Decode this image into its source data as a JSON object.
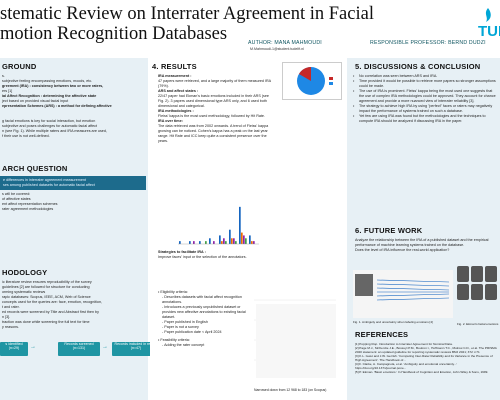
{
  "header": {
    "title_line1": "stematic Review on Interrater Agreement in Facial",
    "title_line2": "motion Recognition Databases",
    "authors": "AUTHOR: MANA MAHMOUDI",
    "email": "M.Mahmoudi-1@student.tudelft.nl",
    "professor": "RESPONSIBLE PROFESSOR: BERND DUDZI"
  },
  "logo": {
    "text": "TUD",
    "icon": "tudelft-flame-icon"
  },
  "background": {
    "heading": "GROUND",
    "lines": [
      "s.",
      "subjective feeling encompassing emotions, moods, etc.",
      "greement (IRA) : consistency between two or more raters,",
      "ers [1]",
      "ial Affect Recognition : determining the affective state",
      "ject based on provided visual facial input",
      "epresentation Schemes (ARS) : a method for defining affective",
      "",
      "",
      "g facial emotions is key for social interaction, but emotion",
      "subjective and poses challenges for automatic facial affect",
      "n (see Fig. 1). While multiple raters and IRA measures are used,",
      "f their use is not well-defined."
    ]
  },
  "research_question": {
    "heading": "ARCH QUESTION",
    "box": [
      "e differences in interrater agreement measurement",
      "ses among published datasets for automatic facial affect"
    ],
    "items": [
      "s will be covered:",
      "of affective states",
      "ent affect representation schemes",
      "rater agreement methodologies"
    ]
  },
  "methodology": {
    "heading": "HODOLOGY",
    "lines": [
      "ic literature review ensures reproducibility of the survey",
      "guidelines [2] are followed for structure for conducting",
      "orming systematic reviews",
      "rapic databases: Scopus, IEEE, ACM, Web of Science",
      "concepts used for the queries are: face, emotion, recognition,",
      "t and rater.",
      "ed records were screened by Title and Abstract first then by",
      "n [3].",
      "traction was done while screening the full text for time",
      "y reasons."
    ],
    "flow": [
      {
        "label": "s identified",
        "sub": "(n=29)"
      },
      {
        "label": "Records screened",
        "sub": "(n=131)"
      },
      {
        "label": "Records included in review",
        "sub": "(n=47)"
      }
    ],
    "eligibility_heading": "Eligibility criteria:",
    "eligibility": [
      "Describes datasets with facial affect recognition annotations.",
      "Introduces a previously unpublished dataset or provides new affective annotations to existing facial dataset.",
      "Paper published in English",
      "Paper is not a survey",
      "Paper publication date < April 2024"
    ],
    "feasibility_heading": "Feasibility criteria:",
    "feasibility": [
      "Adding the rater concept"
    ],
    "chart_caption": "Narrowed down from 12 968 to 183 (on Scopus)"
  },
  "results": {
    "heading": "4. RESULTS",
    "ira_heading": "IRA measurement :",
    "ira_text": "47 papers were retrieved, and a large majority of them measured IRA (79%).",
    "ars_heading": "ARS and affect states :",
    "ars_text": "22/47 paper had Ekman's basic emotions included in their ARS (see Fig. 2). 3 papers used dimensional type ARS only, and 6 used both dimensional and categorical.",
    "meth_heading": "IRA methodologies :",
    "meth_text": "Fleiss' kappa is the most used methodology, followed by Hit Rate.",
    "time_heading": "IRA over time:",
    "time_text": "The data retrieved was from 2002 onwards. A trend of Fleiss' kappa growing can be noticed. Cohen's kappa has a peak on the last year range. Hit Rate and ICC keep quite a consistent presence over the years.",
    "strat_heading": "Strategies to facilitate IRA :",
    "strat_text": "Improve faces' input or the selection of the annotators."
  },
  "pie_chart": {
    "legend": [
      "",
      ""
    ],
    "colors": [
      "#c62828",
      "#1e88e5"
    ]
  },
  "chart_data": {
    "type": "bar",
    "categories": [
      "",
      "",
      "",
      "",
      "",
      "",
      "",
      ""
    ],
    "series": [
      {
        "name": "",
        "values": [
          1,
          1,
          1,
          2,
          3,
          5,
          13,
          3
        ],
        "color": "#1565c0"
      },
      {
        "name": "",
        "values": [
          0,
          0,
          0,
          0,
          1,
          2,
          4,
          1
        ],
        "color": "#ef6c00"
      },
      {
        "name": "",
        "values": [
          0,
          1,
          0,
          1,
          2,
          2,
          3,
          1
        ],
        "color": "#8e24aa"
      },
      {
        "name": "",
        "values": [
          0,
          0,
          1,
          0,
          1,
          1,
          2,
          0
        ],
        "color": "#43a047"
      }
    ],
    "ylim": [
      0,
      14
    ]
  },
  "discussion": {
    "heading": "5. DISCUSSIONS & CONCLUSION",
    "items": [
      "No correlation was seen between ARS and IRA.",
      "Time provided it would be possible to retrieve more papers so stronger assumptions could be made.",
      "The use of IRA is prominent. Fleiss' kappa being the most used one suggests that the use of complex IRA methodologies could be approved. They account for chance agreement and provide a more nuanced view of interrater reliability [3].",
      "The strategy to achieve high IRA by using \"perfect\" faces or raters may negatively impact the performance of systems trained on such a database.",
      "Yet few are using IRA was found but the methodologies and the techniques to compute IRA should be analyzed if discussing IRA in the paper."
    ]
  },
  "future_work": {
    "heading": "6. FUTURE WORK",
    "text1": "Analyze the relationship between the IRA of a published dataset and the empirical performance of machine learning systems trained on the database.",
    "text2": "Does the level of IRA influence the real-world application?",
    "fig1_caption": "Fig. 1. Ambiguity and uncertainty when labeling emotions [4]",
    "fig2_caption": "Fig. 2. Ekman's facial emotions"
  },
  "references": {
    "heading": "REFERENCES",
    "items": [
      "[1] Popping Rop. Introduction to Interrater Agreement for Nominal Data.",
      "[2] Page M.J., McKenzie J.E., Bossuyt P.M., Boutron I., Hoffmann T.C., Mulrow C.D., et al. The PRISMA 2020 statement: an updated guideline for reporting systematic reviews BMJ 2021; 372 :n71",
      "[3] K.L. Gwet and J.W. Gerrish. 'Computing Inter-Rater Reliability and Its Variance in the Presence of High Agreement'. The Handbook of...",
      "[4] F. Clarke, A. Campagnola, et al. 'Ambiguity and emotional uncertainty...' https://doi.org/10.1371/journal.pone...",
      "[5] P. Ekman. 'Basic emotions.' In Handbook of Cognition and Emotion, John Wiley & Sons, 1999."
    ]
  }
}
